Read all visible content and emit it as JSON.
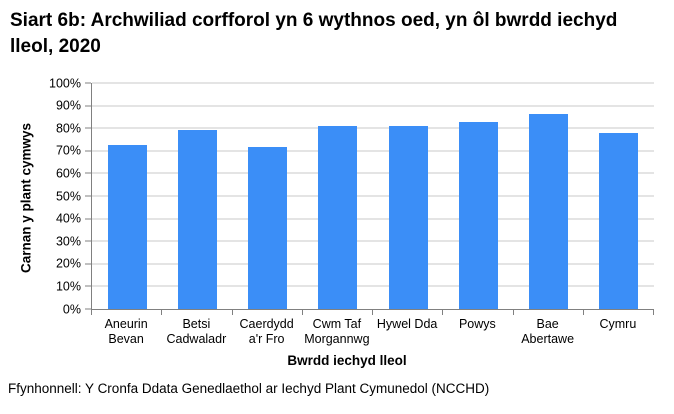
{
  "source": "Ffynhonnell: Y Cronfa Ddata Genedlaethol ar Iechyd Plant Cymunedol (NCCHD)",
  "colors": {
    "bar": "#3B8EF7",
    "gridline": "#C9C9C9",
    "axis": "#808080",
    "text": "#000000",
    "background": "#FFFFFF"
  },
  "chart_data": {
    "type": "bar",
    "title": "Siart 6b: Archwiliad corfforol yn 6 wythnos oed, yn ôl bwrdd iechyd lleol, 2020",
    "categories": [
      "Aneurin\nBevan",
      "Betsi\nCadwaladr",
      "Caerdydd\na'r Fro",
      "Cwm Taf\nMorgannwg",
      "Hywel Dda",
      "Powys",
      "Bae\nAbertawe",
      "Cymru"
    ],
    "values": [
      72.5,
      79.4,
      71.9,
      80.9,
      81.2,
      82.6,
      86.5,
      78.1
    ],
    "xlabel": "Bwrdd iechyd lleol",
    "ylabel": "Carnan y plant cymwys",
    "ylim": [
      0,
      100
    ],
    "yticks": [
      0,
      10,
      20,
      30,
      40,
      50,
      60,
      70,
      80,
      90,
      100
    ],
    "ytick_suffix": "%",
    "grid": true,
    "legend": false
  }
}
